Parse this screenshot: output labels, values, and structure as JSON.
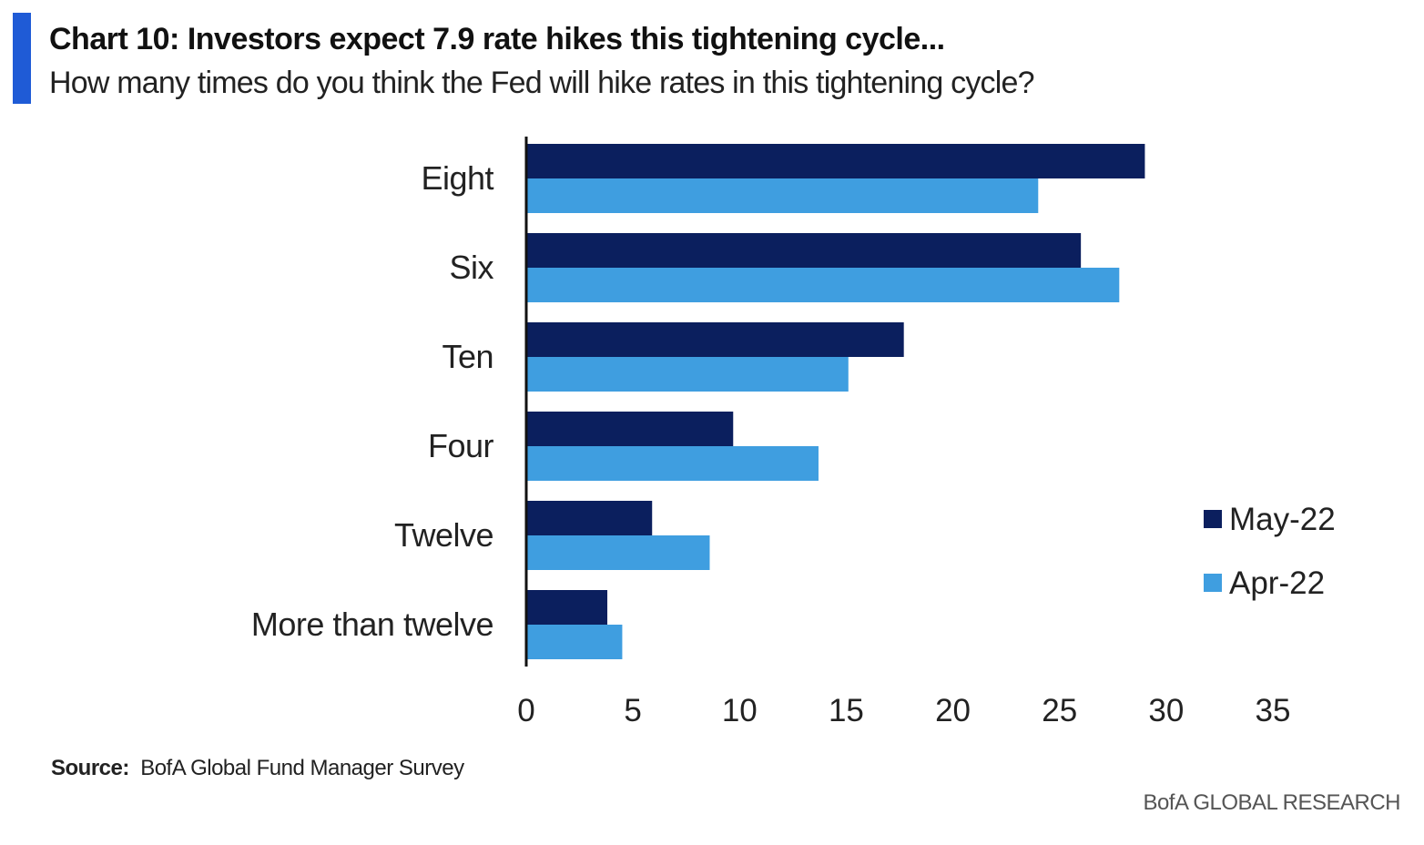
{
  "header": {
    "title": "Chart 10: Investors expect 7.9 rate hikes this tightening cycle...",
    "subtitle": "How many times do you think the Fed will hike rates in this tightening cycle?"
  },
  "footer": {
    "source_label": "Source:",
    "source_text": "BofA Global Fund Manager Survey",
    "brand": "BofA GLOBAL RESEARCH"
  },
  "colors": {
    "accent": "#1f5bd6",
    "series_may": "#0b1f5e",
    "series_apr": "#3f9ee0",
    "axis": "#111111"
  },
  "chart_data": {
    "type": "bar",
    "orientation": "horizontal",
    "categories": [
      "Eight",
      "Six",
      "Ten",
      "Four",
      "Twelve",
      "More than twelve"
    ],
    "series": [
      {
        "name": "May-22",
        "values": [
          29,
          26,
          17.7,
          9.7,
          5.9,
          3.8
        ]
      },
      {
        "name": "Apr-22",
        "values": [
          24,
          27.8,
          15.1,
          13.7,
          8.6,
          4.5
        ]
      }
    ],
    "xlim": [
      0,
      35
    ],
    "xticks": [
      0,
      5,
      10,
      15,
      20,
      25,
      30,
      35
    ],
    "legend_position": "right",
    "grid": false
  }
}
